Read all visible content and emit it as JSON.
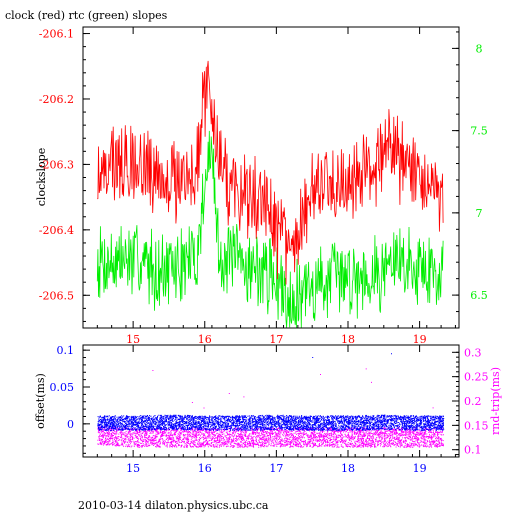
{
  "title": "clock (red) rtc (green) slopes",
  "footer": "2010-03-14  dilaton.physics.ubc.ca",
  "colors": {
    "clock": "#ff0000",
    "rtc": "#00ee00",
    "offset": "#0000ff",
    "rndtrip": "#ff00ff",
    "axis": "#000000"
  },
  "chart_data": [
    {
      "type": "line",
      "title": "clock (red) rtc (green) slopes",
      "xlabel": "",
      "ylabel": "clockslope",
      "xlim": [
        14.3,
        19.55
      ],
      "ylim": [
        -206.55,
        -206.09
      ],
      "y2lim": [
        6.3,
        8.13
      ],
      "xticks": [
        15,
        16,
        17,
        18,
        19
      ],
      "xtick_labels": [
        "15",
        "16",
        "17",
        "18",
        "19"
      ],
      "yticks": [
        -206.1,
        -206.2,
        -206.3,
        -206.4,
        -206.5
      ],
      "ytick_labels": [
        "-206.1",
        "-206.2",
        "-206.3",
        "-206.4",
        "-206.5"
      ],
      "y2ticks": [
        6.5,
        7,
        7.5,
        8
      ],
      "y2tick_labels": [
        "6.5",
        "7",
        "7.5",
        "8"
      ],
      "grid": false,
      "series": [
        {
          "name": "clock",
          "axis": "left",
          "x": [
            14.5,
            14.75,
            15.0,
            15.25,
            15.5,
            15.75,
            15.9,
            16.0,
            16.1,
            16.2,
            16.4,
            16.6,
            16.8,
            17.0,
            17.15,
            17.3,
            17.5,
            17.75,
            18.0,
            18.25,
            18.5,
            18.6,
            18.75,
            19.0,
            19.2,
            19.33
          ],
          "values": [
            -206.325,
            -206.3,
            -206.295,
            -206.31,
            -206.325,
            -206.32,
            -206.29,
            -206.19,
            -206.2,
            -206.3,
            -206.34,
            -206.35,
            -206.36,
            -206.4,
            -206.42,
            -206.4,
            -206.35,
            -206.33,
            -206.32,
            -206.31,
            -206.29,
            -206.27,
            -206.3,
            -206.32,
            -206.34,
            -206.37
          ]
        },
        {
          "name": "rtc",
          "axis": "right",
          "x": [
            14.5,
            14.75,
            15.0,
            15.25,
            15.5,
            15.75,
            15.9,
            16.0,
            16.1,
            16.2,
            16.4,
            16.6,
            16.8,
            17.0,
            17.15,
            17.3,
            17.5,
            17.75,
            18.0,
            18.25,
            18.5,
            18.6,
            18.75,
            19.0,
            19.2,
            19.33
          ],
          "values": [
            6.72,
            6.7,
            6.72,
            6.68,
            6.64,
            6.7,
            6.74,
            7.2,
            7.3,
            6.75,
            6.7,
            6.68,
            6.65,
            6.6,
            6.48,
            6.5,
            6.55,
            6.6,
            6.62,
            6.63,
            6.65,
            6.7,
            6.7,
            6.68,
            6.64,
            6.66
          ]
        }
      ]
    },
    {
      "type": "scatter",
      "title": "",
      "xlabel": "",
      "ylabel": "offset(ms)",
      "y2label": "rnd-trip(ms)",
      "xlim": [
        14.3,
        19.55
      ],
      "ylim": [
        -0.045,
        0.107
      ],
      "y2lim": [
        0.085,
        0.315
      ],
      "xticks": [
        15,
        16,
        17,
        18,
        19
      ],
      "xtick_labels": [
        "15",
        "16",
        "17",
        "18",
        "19"
      ],
      "yticks": [
        0.1,
        0.05,
        0
      ],
      "ytick_labels": [
        "0.1",
        "0.05",
        "0"
      ],
      "y2ticks": [
        0.1,
        0.15,
        0.2,
        0.25,
        0.3
      ],
      "y2tick_labels": [
        "0.1",
        "0.15",
        "0.2",
        "0.25",
        "0.3"
      ],
      "grid": false,
      "series": [
        {
          "name": "offset",
          "axis": "left",
          "x": [
            14.5,
            15.0,
            15.5,
            16.0,
            16.5,
            17.0,
            17.5,
            18.0,
            18.5,
            19.0,
            19.33
          ],
          "values": [
            0.001,
            0.001,
            0.002,
            0.001,
            0.001,
            0.002,
            0.001,
            0.001,
            0.002,
            0.001,
            0.001
          ],
          "outliers": {
            "x": [
              17.5,
              18.6
            ],
            "values": [
              0.09,
              0.095
            ]
          }
        },
        {
          "name": "rnd-trip",
          "axis": "right",
          "x": [
            14.5,
            15.0,
            15.5,
            16.0,
            16.5,
            17.0,
            17.5,
            18.0,
            18.5,
            19.0,
            19.33
          ],
          "values": [
            0.13,
            0.125,
            0.125,
            0.125,
            0.125,
            0.125,
            0.125,
            0.125,
            0.125,
            0.125,
            0.125
          ]
        }
      ]
    }
  ]
}
